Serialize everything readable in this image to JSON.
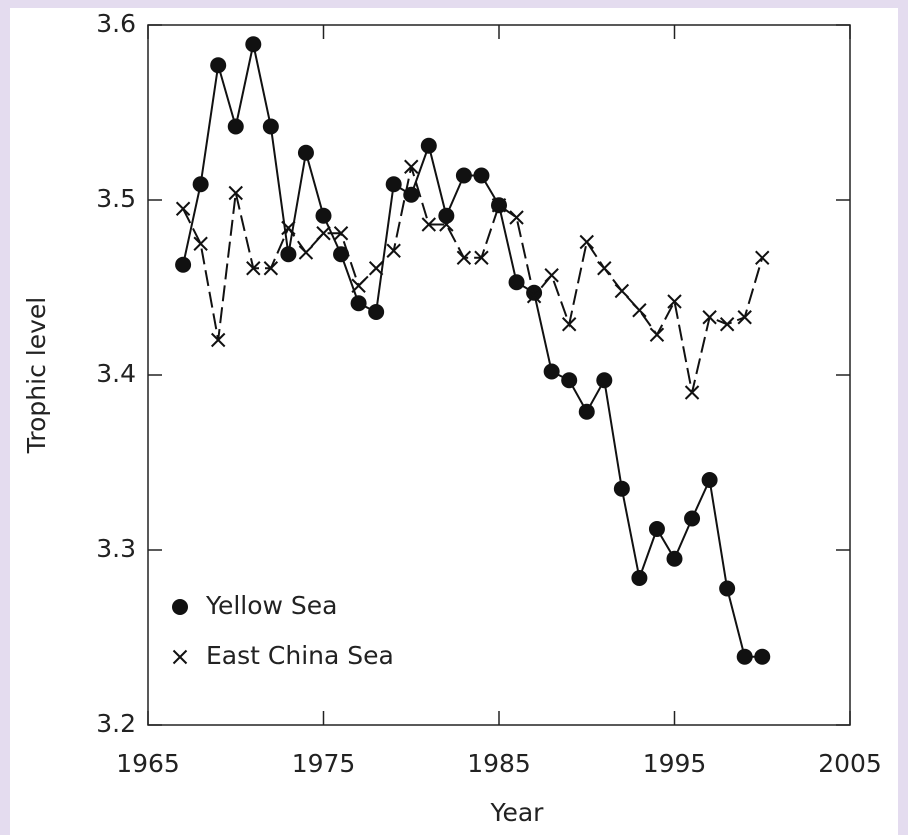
{
  "chart_data": {
    "type": "line",
    "xlabel": "Year",
    "ylabel": "Trophic level",
    "xlim": [
      1965,
      2005
    ],
    "xticks": [
      1965,
      1975,
      1985,
      1995,
      2005
    ],
    "ylim": [
      3.2,
      3.6
    ],
    "yticks": [
      {
        "value": 3.2,
        "label": "3.2"
      },
      3.3,
      3.4,
      3.5,
      {
        "value": 3.6,
        "label": "3.6"
      }
    ],
    "x": [
      1967,
      1968,
      1969,
      1970,
      1971,
      1972,
      1973,
      1974,
      1975,
      1976,
      1977,
      1978,
      1979,
      1980,
      1981,
      1982,
      1983,
      1984,
      1985,
      1986,
      1987,
      1988,
      1989,
      1990,
      1991,
      1992,
      1993,
      1994,
      1995,
      1996,
      1997,
      1998,
      1999,
      2000
    ],
    "series": [
      {
        "name": "Yellow Sea",
        "color": "#111111",
        "marker": "circle",
        "dash": false,
        "values": [
          3.463,
          3.509,
          3.577,
          3.542,
          3.589,
          3.542,
          3.469,
          3.527,
          3.491,
          3.469,
          3.441,
          3.436,
          3.509,
          3.503,
          3.531,
          3.491,
          3.514,
          3.514,
          3.497,
          3.453,
          3.447,
          3.402,
          3.397,
          3.379,
          3.397,
          3.335,
          3.284,
          3.312,
          3.295,
          3.318,
          3.34,
          3.278,
          3.239,
          3.239
        ]
      },
      {
        "name": "East China Sea",
        "color": "#111111",
        "marker": "cross",
        "dash": true,
        "values": [
          3.495,
          3.475,
          3.42,
          3.504,
          3.461,
          3.461,
          3.484,
          3.47,
          3.481,
          3.481,
          3.451,
          3.461,
          3.471,
          3.519,
          3.486,
          3.486,
          3.467,
          3.467,
          3.497,
          3.49,
          3.445,
          3.457,
          3.429,
          3.476,
          3.461,
          3.448,
          3.437,
          3.423,
          3.442,
          3.39,
          3.433,
          3.429,
          3.433,
          3.467
        ]
      }
    ],
    "legend": "lower left"
  }
}
